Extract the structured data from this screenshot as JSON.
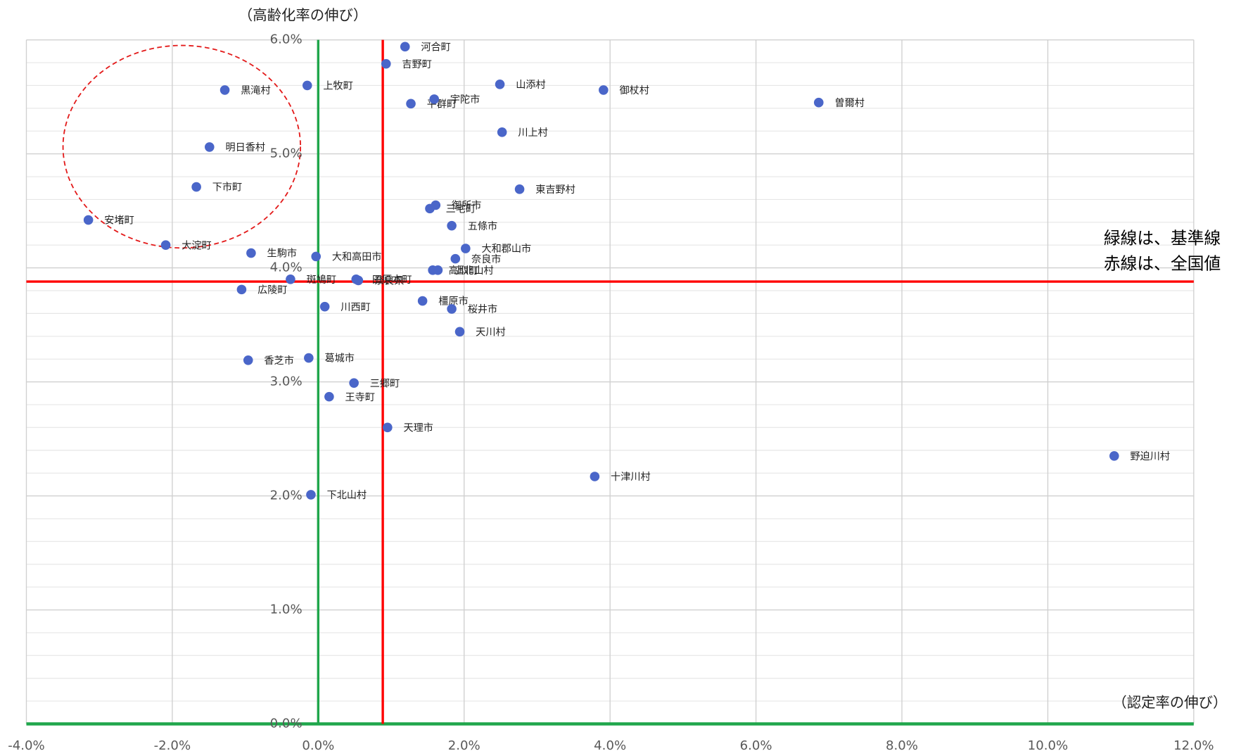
{
  "chart_data": {
    "type": "scatter",
    "y_label": "（高齢化率の伸び）",
    "x_label": "（認定率の伸び）",
    "annotations": [
      "緑線は、基準線",
      "赤線は、全国値"
    ],
    "color": "#4a66c9",
    "grid": true,
    "minor_grid_divisions": 5,
    "xlim": [
      -4,
      12
    ],
    "ylim": [
      0,
      6
    ],
    "xticks": [
      {
        "value": -4,
        "label": "-4.0%"
      },
      {
        "value": -2,
        "label": "-2.0%"
      },
      {
        "value": 0,
        "label": "0.0%"
      },
      {
        "value": 2,
        "label": "2.0%"
      },
      {
        "value": 4,
        "label": "4.0%"
      },
      {
        "value": 6,
        "label": "6.0%"
      },
      {
        "value": 8,
        "label": "8.0%"
      },
      {
        "value": 10,
        "label": "10.0%"
      },
      {
        "value": 12,
        "label": "12.0%"
      }
    ],
    "yticks": [
      {
        "value": 0,
        "label": "0.0%"
      },
      {
        "value": 1,
        "label": "1.0%"
      },
      {
        "value": 2,
        "label": "2.0%"
      },
      {
        "value": 3,
        "label": "3.0%"
      },
      {
        "value": 4,
        "label": "4.0%"
      },
      {
        "value": 5,
        "label": "5.0%"
      },
      {
        "value": 6,
        "label": "6.0%"
      }
    ],
    "reference_lines": [
      {
        "axis": "x",
        "value": 0,
        "color": "#1fa64b"
      },
      {
        "axis": "y",
        "value": 0,
        "color": "#1fa64b"
      },
      {
        "axis": "x",
        "value": 0.885,
        "color": "#ff0000"
      },
      {
        "axis": "y",
        "value": 3.88,
        "color": "#ff0000"
      }
    ],
    "labels": [
      "河合町",
      "吉野町",
      "山添村",
      "御杖村",
      "曽爾村",
      "黒滝村",
      "上牧町",
      "平群町",
      "宇陀市",
      "川上村",
      "明日香村",
      "下市町",
      "東吉野村",
      "御所市",
      "三宅町",
      "安堵町",
      "五條市",
      "大淀町",
      "大和郡山市",
      "生駒市",
      "大和高田市",
      "奈良市",
      "高取町",
      "上北山村",
      "斑鳩町",
      "田原本町",
      "奈良県",
      "広陵町",
      "川西町",
      "橿原市",
      "桜井市",
      "天川村",
      "香芝市",
      "葛城市",
      "三郷町",
      "王寺町",
      "天理市",
      "十津川村",
      "野迫川村",
      "下北山村"
    ],
    "x": [
      1.19,
      0.93,
      2.49,
      3.91,
      6.86,
      -1.28,
      -0.15,
      1.27,
      1.59,
      2.52,
      -1.49,
      -1.67,
      2.76,
      1.61,
      1.53,
      -3.15,
      1.83,
      -2.09,
      2.02,
      -0.92,
      -0.03,
      1.88,
      1.57,
      1.64,
      -0.38,
      0.52,
      0.55,
      -1.05,
      0.09,
      1.43,
      1.83,
      1.94,
      -0.96,
      -0.13,
      0.49,
      0.15,
      0.95,
      3.79,
      10.91,
      -0.1
    ],
    "y": [
      5.94,
      5.79,
      5.61,
      5.56,
      5.45,
      5.56,
      5.6,
      5.44,
      5.48,
      5.19,
      5.06,
      4.71,
      4.69,
      4.55,
      4.52,
      4.42,
      4.37,
      4.2,
      4.17,
      4.13,
      4.1,
      4.08,
      3.98,
      3.98,
      3.9,
      3.9,
      3.89,
      3.81,
      3.66,
      3.71,
      3.64,
      3.44,
      3.19,
      3.21,
      2.99,
      2.87,
      2.6,
      2.17,
      2.35,
      2.01
    ]
  }
}
